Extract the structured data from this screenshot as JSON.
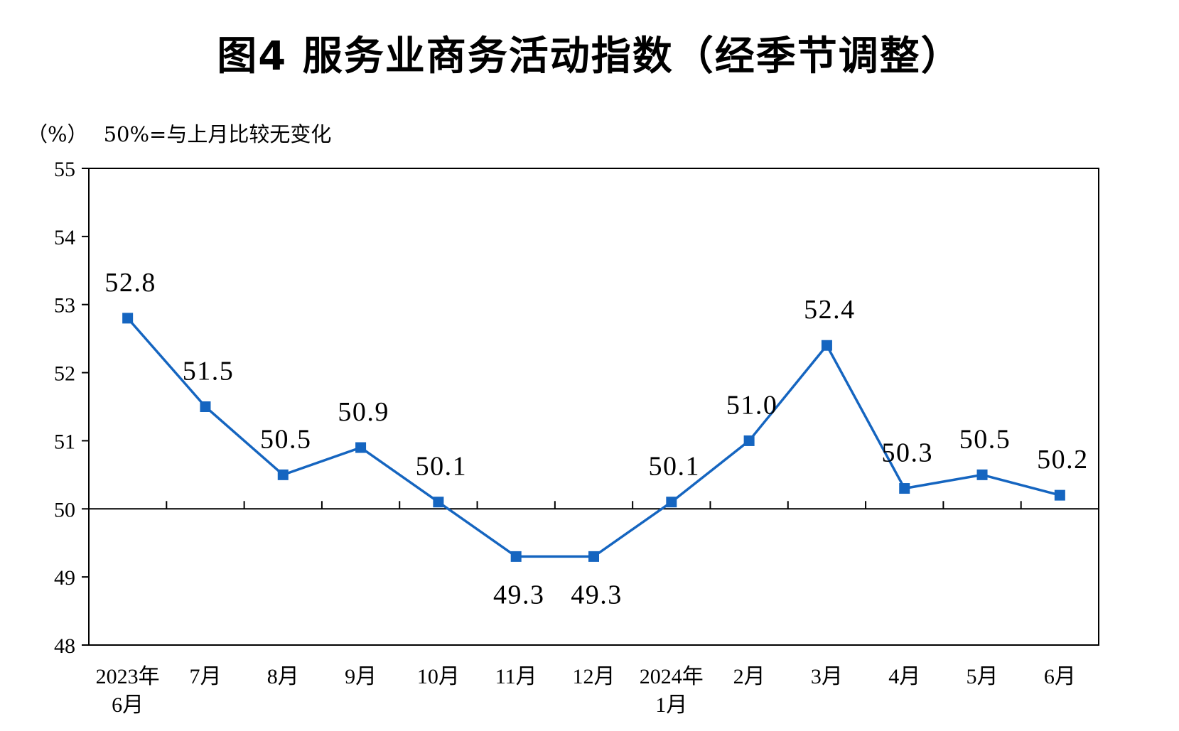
{
  "title": "图4  服务业商务活动指数（经季节调整）",
  "unit_label": "（%）",
  "reference_note": "50%=与上月比较无变化",
  "chart_data": {
    "type": "line",
    "title": "图4  服务业商务活动指数（经季节调整）",
    "ylabel": "（%）",
    "ylim": [
      48,
      55
    ],
    "yticks": [
      "48",
      "49",
      "50",
      "51",
      "52",
      "53",
      "54",
      "55"
    ],
    "reference_line": 50,
    "categories": [
      [
        "2023年",
        "6月"
      ],
      [
        "7月"
      ],
      [
        "8月"
      ],
      [
        "9月"
      ],
      [
        "10月"
      ],
      [
        "11月"
      ],
      [
        "12月"
      ],
      [
        "2024年",
        "1月"
      ],
      [
        "2月"
      ],
      [
        "3月"
      ],
      [
        "4月"
      ],
      [
        "5月"
      ],
      [
        "6月"
      ]
    ],
    "series": [
      {
        "values": [
          52.8,
          51.5,
          50.5,
          50.9,
          50.1,
          49.3,
          49.3,
          50.1,
          51.0,
          52.4,
          50.3,
          50.5,
          50.2
        ],
        "labels": [
          "52.8",
          "51.5",
          "50.5",
          "50.9",
          "50.1",
          "49.3",
          "49.3",
          "50.1",
          "51.0",
          "52.4",
          "50.3",
          "50.5",
          "50.2"
        ],
        "color": "#1565c0"
      }
    ],
    "grid": false
  }
}
